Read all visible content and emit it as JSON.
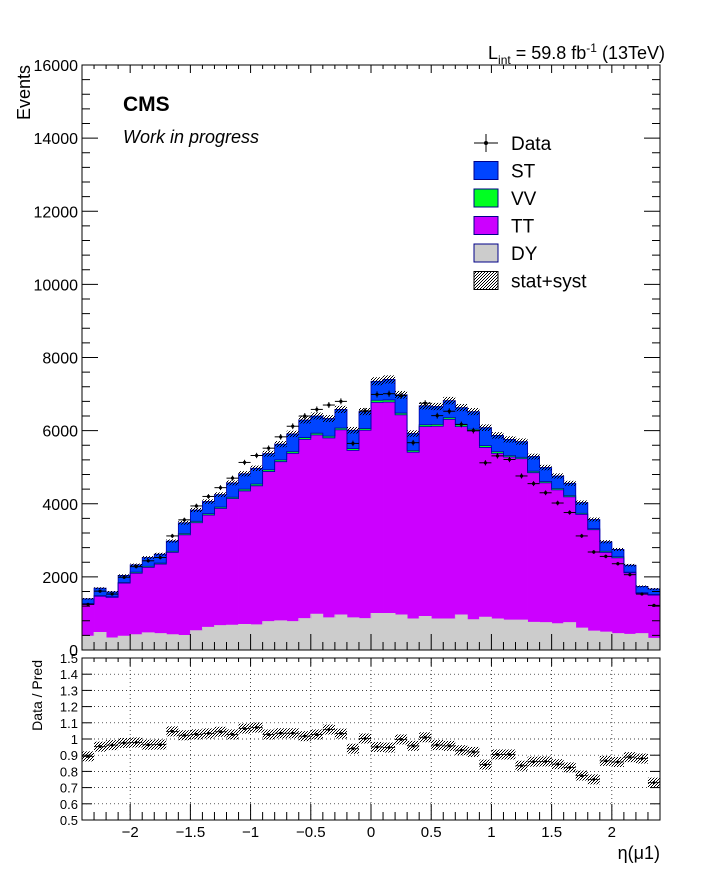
{
  "header": {
    "lumi_prefix": "L",
    "lumi_sub": "int",
    "lumi_value": " = 59.8 fb",
    "lumi_sup": "-1",
    "lumi_energy": " (13TeV)"
  },
  "badge": {
    "experiment": "CMS",
    "status": "Work in progress"
  },
  "colors": {
    "ST": "#0044ff",
    "VV": "#00ff22",
    "TT": "#cc00ff",
    "DY": "#cccccc",
    "data": "#000000"
  },
  "chart_data": {
    "type": "bar",
    "stacked": true,
    "title": "",
    "xlabel": "η(μ1)",
    "ylabel": "Events",
    "xlim": [
      -2.4,
      2.4
    ],
    "ylim": [
      0,
      16000
    ],
    "x_ticks": [
      "−2",
      "−1.5",
      "−1",
      "−0.5",
      "0",
      "0.5",
      "1",
      "1.5",
      "2"
    ],
    "x_tick_values": [
      -2,
      -1.5,
      -1,
      -0.5,
      0,
      0.5,
      1,
      1.5,
      2
    ],
    "y_ticks": [
      "0",
      "2000",
      "4000",
      "6000",
      "8000",
      "10000",
      "12000",
      "14000",
      "16000"
    ],
    "y_tick_values": [
      0,
      2000,
      4000,
      6000,
      8000,
      10000,
      12000,
      14000,
      16000
    ],
    "bin_edges": [
      -2.4,
      -2.3,
      -2.2,
      -2.1,
      -2.0,
      -1.9,
      -1.8,
      -1.7,
      -1.6,
      -1.5,
      -1.4,
      -1.3,
      -1.2,
      -1.1,
      -1.0,
      -0.9,
      -0.8,
      -0.7,
      -0.6,
      -0.5,
      -0.4,
      -0.3,
      -0.2,
      -0.1,
      0.0,
      0.1,
      0.2,
      0.3,
      0.4,
      0.5,
      0.6,
      0.7,
      0.8,
      0.9,
      1.0,
      1.1,
      1.2,
      1.3,
      1.4,
      1.5,
      1.6,
      1.7,
      1.8,
      1.9,
      2.0,
      2.1,
      2.2,
      2.3,
      2.4
    ],
    "series": [
      {
        "name": "DY",
        "values": [
          380,
          480,
          330,
          380,
          420,
          470,
          450,
          420,
          400,
          530,
          620,
          670,
          680,
          700,
          690,
          780,
          800,
          780,
          860,
          980,
          880,
          960,
          880,
          860,
          1000,
          1000,
          960,
          850,
          920,
          850,
          850,
          960,
          830,
          900,
          850,
          820,
          820,
          760,
          750,
          720,
          750,
          600,
          520,
          490,
          450,
          430,
          450,
          320
        ]
      },
      {
        "name": "TT",
        "values": [
          870,
          990,
          1110,
          1450,
          1680,
          1790,
          1900,
          2250,
          2750,
          2950,
          3070,
          3200,
          3460,
          3650,
          3800,
          4100,
          4350,
          4600,
          4900,
          4900,
          4920,
          5060,
          4580,
          5150,
          5770,
          5780,
          5470,
          4560,
          5190,
          5270,
          5460,
          5150,
          5160,
          4640,
          4530,
          4460,
          4410,
          4090,
          3820,
          3660,
          3440,
          3110,
          2770,
          2180,
          2070,
          1680,
          1100,
          1180
        ]
      },
      {
        "name": "VV",
        "values": [
          20,
          20,
          20,
          20,
          30,
          30,
          30,
          30,
          40,
          40,
          40,
          40,
          40,
          50,
          50,
          50,
          50,
          50,
          50,
          50,
          50,
          50,
          50,
          50,
          60,
          60,
          50,
          50,
          50,
          50,
          50,
          50,
          50,
          50,
          50,
          40,
          40,
          40,
          40,
          40,
          40,
          30,
          30,
          30,
          30,
          20,
          20,
          20
        ]
      },
      {
        "name": "ST",
        "values": [
          130,
          200,
          130,
          190,
          200,
          240,
          240,
          280,
          290,
          310,
          330,
          340,
          390,
          420,
          430,
          440,
          430,
          480,
          480,
          470,
          480,
          510,
          500,
          460,
          520,
          560,
          500,
          460,
          520,
          490,
          460,
          470,
          480,
          490,
          440,
          440,
          430,
          400,
          380,
          340,
          330,
          290,
          250,
          260,
          200,
          190,
          170,
          150
        ]
      }
    ],
    "data_values": [
      1250,
      1610,
      1530,
      1990,
      2280,
      2440,
      2530,
      3120,
      3560,
      3940,
      4200,
      4440,
      4700,
      5130,
      5320,
      5520,
      5830,
      6120,
      6400,
      6580,
      6700,
      6800,
      5650,
      6540,
      6990,
      7010,
      6960,
      5670,
      6750,
      6410,
      6530,
      6170,
      6000,
      5120,
      5310,
      5210,
      4760,
      4550,
      4300,
      4020,
      3760,
      3120,
      2680,
      2560,
      2360,
      2060,
      1530,
      1220
    ],
    "legend": [
      {
        "label": "Data",
        "kind": "marker"
      },
      {
        "label": "ST",
        "kind": "box",
        "color": "#0044ff"
      },
      {
        "label": "VV",
        "kind": "box",
        "color": "#00ff22"
      },
      {
        "label": "TT",
        "kind": "box",
        "color": "#cc00ff"
      },
      {
        "label": "DY",
        "kind": "box",
        "color": "#cccccc"
      },
      {
        "label": "stat+syst",
        "kind": "hatch"
      }
    ],
    "legend_position": "top-right",
    "ratio_panel": {
      "ylabel": "Data / Pred",
      "ylim": [
        0.5,
        1.5
      ],
      "y_ticks": [
        "0.5",
        "0.6",
        "0.7",
        "0.8",
        "0.9",
        "1",
        "1.1",
        "1.2",
        "1.3",
        "1.4",
        "1.5"
      ],
      "y_tick_values": [
        0.5,
        0.6,
        0.7,
        0.8,
        0.9,
        1.0,
        1.1,
        1.2,
        1.3,
        1.4,
        1.5
      ],
      "grid": true
    }
  }
}
